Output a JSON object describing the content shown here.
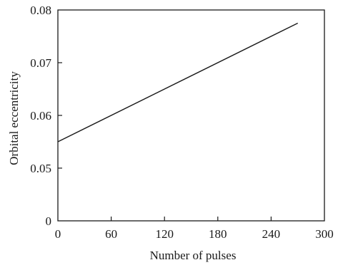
{
  "chart_data": {
    "type": "line",
    "title": "",
    "xlabel": "Number of pulses",
    "ylabel": "Orbital eccentricity",
    "xlim": [
      0,
      300
    ],
    "ylim": [
      0.04,
      0.08
    ],
    "x_ticks": [
      0,
      60,
      120,
      180,
      240,
      300
    ],
    "x_tick_labels": [
      "0",
      "60",
      "120",
      "180",
      "240",
      "300"
    ],
    "y_ticks": [
      0.04,
      0.05,
      0.06,
      0.07,
      0.08
    ],
    "y_tick_labels": [
      "0",
      "0.05",
      "0.06",
      "0.07",
      "0.08"
    ],
    "y_axis_break": true,
    "grid": false,
    "legend": "none",
    "series": [
      {
        "x": [
          0,
          270
        ],
        "y": [
          0.055,
          0.0775
        ],
        "color": "#1a1a1a"
      }
    ]
  }
}
